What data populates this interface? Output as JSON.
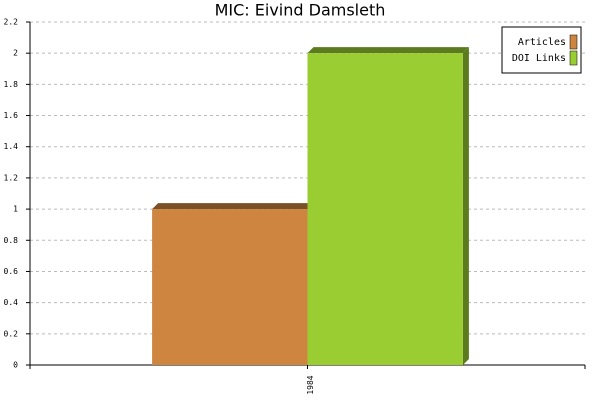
{
  "chart_data": {
    "type": "bar",
    "title": "MIC: Eivind Damsleth",
    "categories": [
      "1984"
    ],
    "series": [
      {
        "name": "Articles",
        "color": "#cd853f",
        "values": [
          1
        ]
      },
      {
        "name": "DOI Links",
        "color": "#9acd32",
        "values": [
          2
        ]
      }
    ],
    "ylim": [
      0,
      2.2
    ],
    "yticks": [
      0,
      0.2,
      0.4,
      0.6,
      0.8,
      1,
      1.2,
      1.4,
      1.6,
      1.8,
      2,
      2.2
    ],
    "grid": true,
    "legend": "top-right"
  }
}
